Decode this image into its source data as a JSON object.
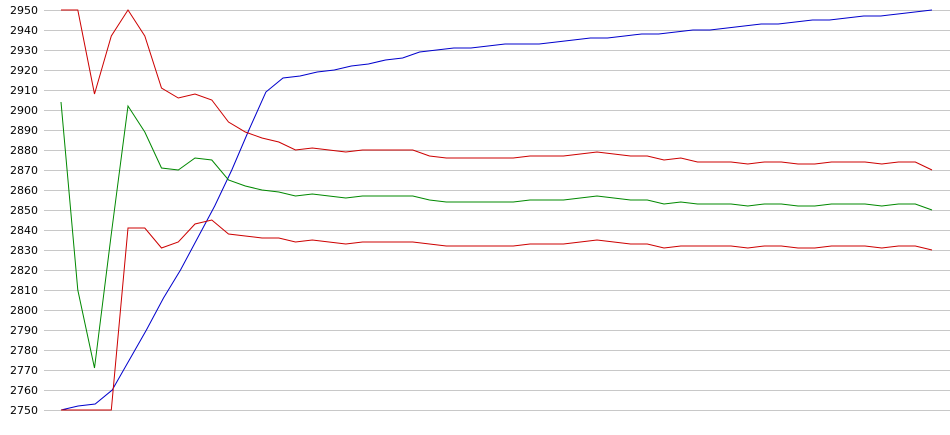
{
  "chart_data": {
    "type": "line",
    "title": "",
    "xlabel": "",
    "ylabel": "",
    "ylim": [
      2750,
      2950
    ],
    "yticks": [
      2750,
      2760,
      2770,
      2780,
      2790,
      2800,
      2810,
      2820,
      2830,
      2840,
      2850,
      2860,
      2870,
      2880,
      2890,
      2900,
      2910,
      2920,
      2930,
      2940,
      2950
    ],
    "grid": true,
    "legend": "none",
    "series": [
      {
        "color": "#0000cc",
        "values": [
          2750,
          2752,
          2753,
          2760,
          2775,
          2790,
          2806,
          2820,
          2836,
          2852,
          2870,
          2890,
          2909,
          2916,
          2917,
          2919,
          2920,
          2922,
          2923,
          2925,
          2926,
          2929,
          2930,
          2931,
          2931,
          2932,
          2933,
          2933,
          2933,
          2934,
          2935,
          2936,
          2936,
          2937,
          2938,
          2938,
          2939,
          2940,
          2940,
          2941,
          2942,
          2943,
          2943,
          2944,
          2945,
          2945,
          2946,
          2947,
          2947,
          2948,
          2949,
          2950
        ]
      },
      {
        "color": "#cc0000",
        "values": [
          2950,
          2950,
          2908,
          2937,
          2950,
          2937,
          2911,
          2906,
          2908,
          2905,
          2894,
          2889,
          2886,
          2884,
          2880,
          2881,
          2880,
          2879,
          2880,
          2880,
          2880,
          2880,
          2877,
          2876,
          2876,
          2876,
          2876,
          2876,
          2877,
          2877,
          2877,
          2878,
          2879,
          2878,
          2877,
          2877,
          2875,
          2876,
          2874,
          2874,
          2874,
          2873,
          2874,
          2874,
          2873,
          2873,
          2874,
          2874,
          2874,
          2873,
          2874,
          2874,
          2870
        ]
      },
      {
        "color": "#008800",
        "values": [
          2904,
          2810,
          2771,
          2838,
          2902,
          2889,
          2871,
          2870,
          2876,
          2875,
          2865,
          2862,
          2860,
          2859,
          2857,
          2858,
          2857,
          2856,
          2857,
          2857,
          2857,
          2857,
          2855,
          2854,
          2854,
          2854,
          2854,
          2854,
          2855,
          2855,
          2855,
          2856,
          2857,
          2856,
          2855,
          2855,
          2853,
          2854,
          2853,
          2853,
          2853,
          2852,
          2853,
          2853,
          2852,
          2852,
          2853,
          2853,
          2853,
          2852,
          2853,
          2853,
          2850
        ]
      },
      {
        "color": "#cc0000",
        "values": [
          2750,
          2750,
          2750,
          2750,
          2841,
          2841,
          2831,
          2834,
          2843,
          2845,
          2838,
          2837,
          2836,
          2836,
          2834,
          2835,
          2834,
          2833,
          2834,
          2834,
          2834,
          2834,
          2833,
          2832,
          2832,
          2832,
          2832,
          2832,
          2833,
          2833,
          2833,
          2834,
          2835,
          2834,
          2833,
          2833,
          2831,
          2832,
          2832,
          2832,
          2832,
          2831,
          2832,
          2832,
          2831,
          2831,
          2832,
          2832,
          2832,
          2831,
          2832,
          2832,
          2830
        ]
      }
    ]
  }
}
